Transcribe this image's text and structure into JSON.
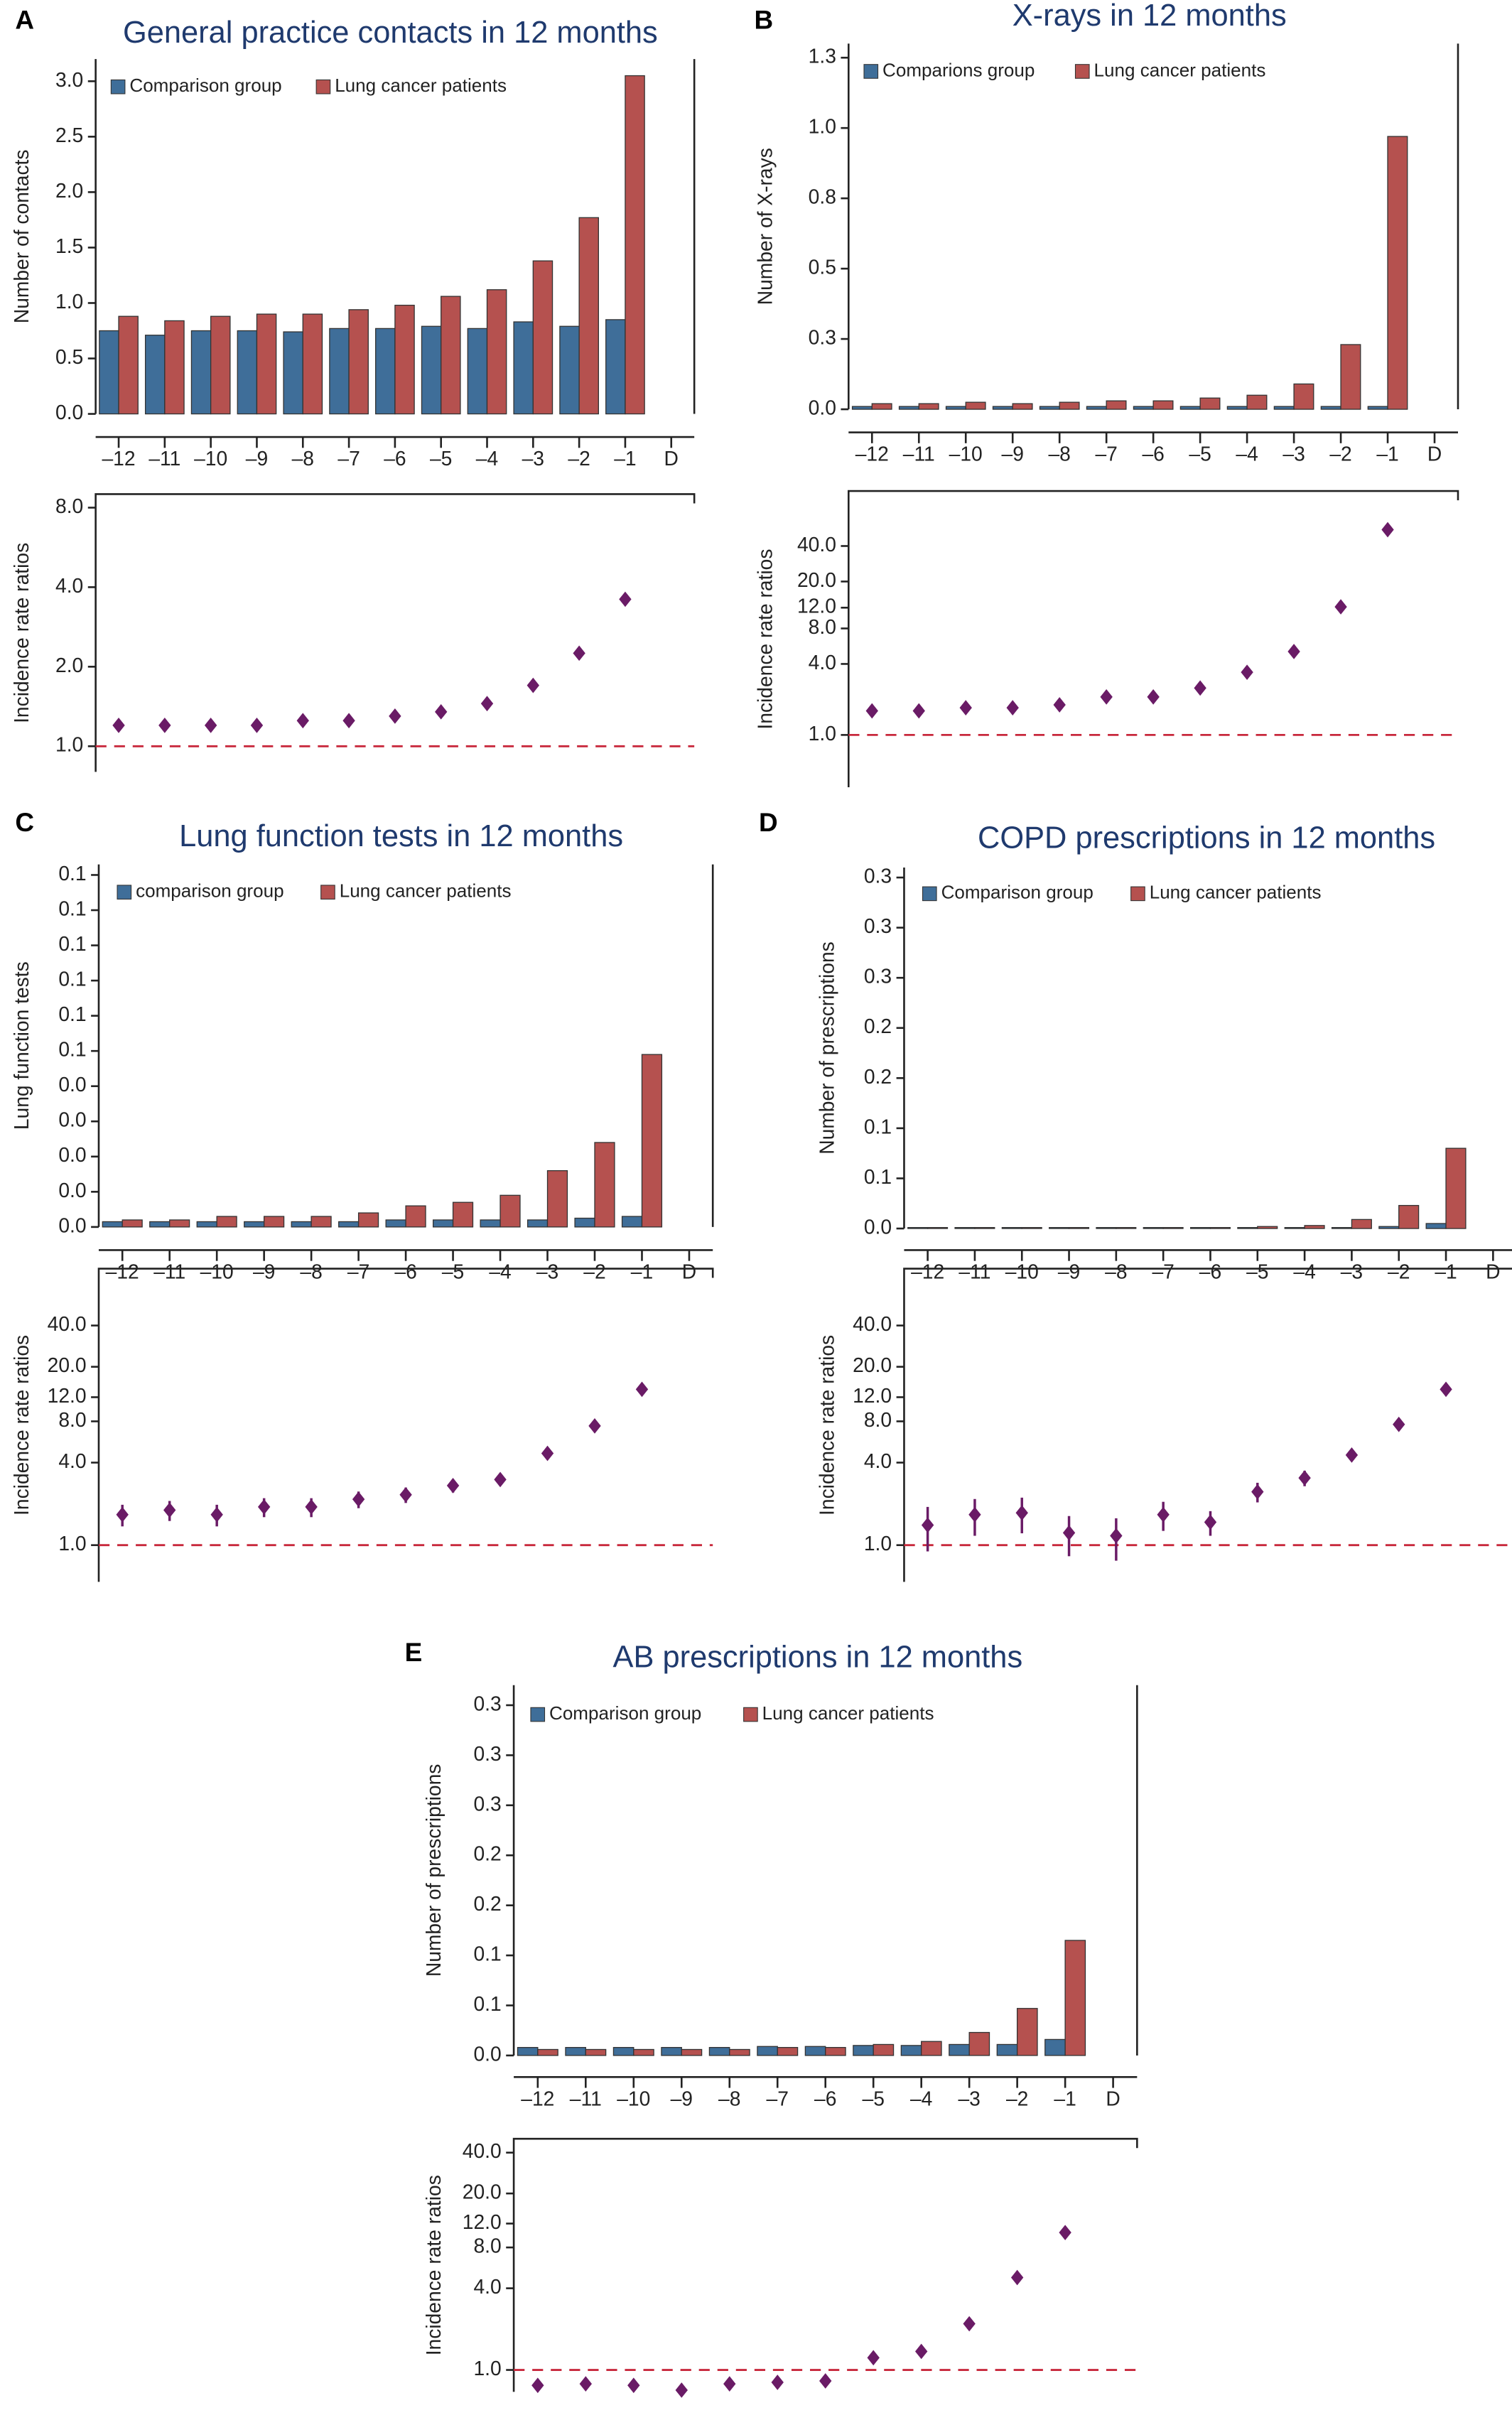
{
  "chart_data": [
    {
      "type": "bar",
      "panel": "A",
      "title": "General practice contacts in 12 months",
      "ylabel": "Number of contacts",
      "categories": [
        "–12",
        "–11",
        "–10",
        "–9",
        "–8",
        "–7",
        "–6",
        "–5",
        "–4",
        "–3",
        "–2",
        "–1",
        "D"
      ],
      "series": [
        {
          "name": "Comparison group",
          "color": "#3f6e99",
          "values": [
            0.75,
            0.71,
            0.75,
            0.75,
            0.74,
            0.77,
            0.77,
            0.79,
            0.77,
            0.83,
            0.79,
            0.85,
            null
          ]
        },
        {
          "name": "Lung cancer patients",
          "color": "#b5514f",
          "values": [
            0.88,
            0.84,
            0.88,
            0.9,
            0.9,
            0.94,
            0.98,
            1.06,
            1.12,
            1.38,
            1.77,
            3.05,
            null
          ]
        }
      ],
      "ylim": [
        0,
        3.2
      ],
      "yticks": [
        {
          "value": 0,
          "label": "0.0"
        },
        0.5,
        {
          "value": 1,
          "label": "1.0"
        },
        1.5,
        {
          "value": 2,
          "label": "2.0"
        },
        2.5,
        {
          "value": 3,
          "label": "3.0"
        }
      ]
    },
    {
      "type": "scatter",
      "ylabel": "Incidence rate ratios",
      "log_scale": true,
      "reference_line": 1,
      "color": "#6a1b66",
      "values": [
        1.2,
        1.2,
        1.2,
        1.2,
        1.25,
        1.25,
        1.3,
        1.35,
        1.45,
        1.7,
        2.25,
        3.6
      ],
      "ylim": [
        0.8,
        9
      ],
      "yticks": [
        {
          "value": 1,
          "label": "1.0"
        },
        {
          "value": 2,
          "label": "2.0"
        },
        {
          "value": 4,
          "label": "4.0"
        },
        {
          "value": 8,
          "label": "8.0"
        }
      ]
    },
    {
      "type": "bar",
      "panel": "B",
      "title": "X-rays in 12 months",
      "ylabel": "Number of X-rays",
      "categories": [
        "–12",
        "–11",
        "–10",
        "–9",
        "–8",
        "–7",
        "–6",
        "–5",
        "–4",
        "–3",
        "–2",
        "–1",
        "D"
      ],
      "series": [
        {
          "name": "Comparions group",
          "color": "#3f6e99",
          "values": [
            0.01,
            0.01,
            0.01,
            0.01,
            0.01,
            0.01,
            0.01,
            0.01,
            0.01,
            0.01,
            0.01,
            0.01,
            null
          ]
        },
        {
          "name": "Lung cancer patients",
          "color": "#b5514f",
          "values": [
            0.02,
            0.02,
            0.025,
            0.02,
            0.025,
            0.03,
            0.03,
            0.04,
            0.05,
            0.09,
            0.23,
            0.97,
            null
          ]
        }
      ],
      "ylim": [
        0,
        1.3
      ],
      "yticks": [
        {
          "value": 0,
          "label": "0.0"
        },
        {
          "value": 0.25,
          "label": "0.3"
        },
        0.5,
        {
          "value": 0.75,
          "label": "0.8"
        },
        {
          "value": 1,
          "label": "1.0"
        },
        {
          "value": 1.25,
          "label": "1.3"
        }
      ]
    },
    {
      "type": "scatter",
      "ylabel": "Incidence rate ratios",
      "log_scale": true,
      "reference_line": 1,
      "color": "#6a1b66",
      "values": [
        1.6,
        1.6,
        1.7,
        1.7,
        1.8,
        2.1,
        2.1,
        2.5,
        3.4,
        5.1,
        12.2,
        55
      ],
      "ylim": [
        0.36,
        117
      ],
      "yticks": [
        {
          "value": 1,
          "label": "1.0"
        },
        {
          "value": 4,
          "label": "4.0"
        },
        {
          "value": 8,
          "label": "8.0"
        },
        {
          "value": 12,
          "label": "12.0"
        },
        {
          "value": 20,
          "label": "20.0"
        },
        {
          "value": 40,
          "label": "40.0"
        }
      ]
    },
    {
      "type": "bar",
      "panel": "C",
      "title": "Lung function tests in 12 months",
      "ylabel": "Lung function tests",
      "categories": [
        "–12",
        "–11",
        "–10",
        "–9",
        "–8",
        "–7",
        "–6",
        "–5",
        "–4",
        "–3",
        "–2",
        "–1",
        "D"
      ],
      "series": [
        {
          "name": "comparison group",
          "color": "#3f6e99",
          "values": [
            0.0015,
            0.0015,
            0.0015,
            0.0015,
            0.0015,
            0.0015,
            0.002,
            0.002,
            0.002,
            0.002,
            0.0025,
            0.003,
            null
          ]
        },
        {
          "name": "Lung cancer patients",
          "color": "#b5514f",
          "values": [
            0.002,
            0.002,
            0.003,
            0.003,
            0.003,
            0.004,
            0.006,
            0.007,
            0.009,
            0.016,
            0.024,
            0.049,
            null
          ]
        }
      ],
      "ylim": [
        0,
        0.103
      ],
      "yticks": [
        {
          "value": 0,
          "label": "0.0"
        },
        {
          "value": 0.01,
          "label": "0.0"
        },
        {
          "value": 0.02,
          "label": "0.0"
        },
        {
          "value": 0.03,
          "label": "0.0"
        },
        {
          "value": 0.04,
          "label": "0.0"
        },
        {
          "value": 0.05,
          "label": "0.1"
        },
        {
          "value": 0.06,
          "label": "0.1"
        },
        {
          "value": 0.07,
          "label": "0.1"
        },
        {
          "value": 0.08,
          "label": "0.1"
        },
        {
          "value": 0.09,
          "label": "0.1"
        },
        0.1
      ]
    },
    {
      "type": "scatter",
      "ylabel": "Incidence rate ratios",
      "log_scale": true,
      "reference_line": 1,
      "color": "#6a1b66",
      "values": [
        1.67,
        1.8,
        1.67,
        1.9,
        1.9,
        2.16,
        2.33,
        2.72,
        3.01,
        4.67,
        7.41,
        13.7
      ],
      "errors": [
        0.3,
        0.3,
        0.3,
        0.3,
        0.3,
        0.3,
        0.3,
        0.3,
        0.3,
        0.4,
        0.6,
        0.8
      ],
      "ylim": [
        0.54,
        104
      ],
      "yticks": [
        {
          "value": 1,
          "label": "1.0"
        },
        {
          "value": 4,
          "label": "4.0"
        },
        {
          "value": 8,
          "label": "8.0"
        },
        {
          "value": 12,
          "label": "12.0"
        },
        {
          "value": 20,
          "label": "20.0"
        },
        {
          "value": 40,
          "label": "40.0"
        }
      ]
    },
    {
      "type": "bar",
      "panel": "D",
      "title": "COPD prescriptions in 12 months",
      "ylabel": "Number of prescriptions",
      "categories": [
        "–12",
        "–11",
        "–10",
        "–9",
        "–8",
        "–7",
        "–6",
        "–5",
        "–4",
        "–3",
        "–2",
        "–1",
        "D"
      ],
      "series": [
        {
          "name": "Comparison group",
          "color": "#3f6e99",
          "values": [
            0.001,
            0.001,
            0.001,
            0.001,
            0.001,
            0.001,
            0.001,
            0.001,
            0.001,
            0.001,
            0.002,
            0.005,
            null
          ]
        },
        {
          "name": "Lung cancer patients",
          "color": "#b5514f",
          "values": [
            0.001,
            0.001,
            0.001,
            0.001,
            0.001,
            0.001,
            0.001,
            0.002,
            0.003,
            0.009,
            0.023,
            0.08,
            null
          ]
        }
      ],
      "ylim": [
        0,
        0.36
      ],
      "yticks": [
        {
          "value": 0,
          "label": "0.0"
        },
        {
          "value": 0.05,
          "label": "0.1"
        },
        0.1,
        {
          "value": 0.15,
          "label": "0.2"
        },
        0.2,
        {
          "value": 0.25,
          "label": "0.3"
        },
        0.3,
        {
          "value": 0.35,
          "label": "0.3"
        }
      ]
    },
    {
      "type": "scatter",
      "ylabel": "Incidence rate ratios",
      "log_scale": true,
      "reference_line": 1,
      "color": "#6a1b66",
      "values": [
        1.4,
        1.67,
        1.72,
        1.23,
        1.17,
        1.67,
        1.47,
        2.45,
        3.09,
        4.54,
        7.6,
        13.7
      ],
      "errors": [
        0.5,
        0.5,
        0.5,
        0.4,
        0.4,
        0.4,
        0.3,
        0.4,
        0.4,
        0.4,
        0.5,
        0.8
      ],
      "ylim": [
        0.54,
        104
      ],
      "yticks": [
        {
          "value": 1,
          "label": "1.0"
        },
        {
          "value": 4,
          "label": "4.0"
        },
        {
          "value": 8,
          "label": "8.0"
        },
        {
          "value": 12,
          "label": "12.0"
        },
        {
          "value": 20,
          "label": "20.0"
        },
        {
          "value": 40,
          "label": "40.0"
        }
      ]
    },
    {
      "type": "bar",
      "panel": "E",
      "title": "AB prescriptions in 12 months",
      "ylabel": "Number of prescriptions",
      "categories": [
        "–12",
        "–11",
        "–10",
        "–9",
        "–8",
        "–7",
        "–6",
        "–5",
        "–4",
        "–3",
        "–2",
        "–1",
        "D"
      ],
      "series": [
        {
          "name": "Comparison group",
          "color": "#3f6e99",
          "values": [
            0.008,
            0.008,
            0.008,
            0.008,
            0.008,
            0.009,
            0.009,
            0.01,
            0.01,
            0.011,
            0.011,
            0.016,
            null
          ]
        },
        {
          "name": "Lung cancer patients",
          "color": "#b5514f",
          "values": [
            0.006,
            0.006,
            0.006,
            0.006,
            0.006,
            0.008,
            0.008,
            0.011,
            0.014,
            0.023,
            0.047,
            0.115,
            null
          ]
        }
      ],
      "ylim": [
        0,
        0.37
      ],
      "yticks": [
        {
          "value": 0,
          "label": "0.0"
        },
        {
          "value": 0.05,
          "label": "0.1"
        },
        0.1,
        {
          "value": 0.15,
          "label": "0.2"
        },
        0.2,
        {
          "value": 0.25,
          "label": "0.3"
        },
        0.3,
        {
          "value": 0.35,
          "label": "0.3"
        }
      ]
    },
    {
      "type": "scatter",
      "ylabel": "Incidence rate ratios",
      "log_scale": true,
      "reference_line": 1,
      "color": "#6a1b66",
      "values": [
        0.77,
        0.79,
        0.77,
        0.71,
        0.79,
        0.81,
        0.83,
        1.23,
        1.37,
        2.19,
        4.8,
        10.3
      ],
      "ylim": [
        0.69,
        50.6
      ],
      "yticks": [
        {
          "value": 1,
          "label": "1.0"
        },
        {
          "value": 4,
          "label": "4.0"
        },
        {
          "value": 8,
          "label": "8.0"
        },
        {
          "value": 12,
          "label": "12.0"
        },
        {
          "value": 20,
          "label": "20.0"
        },
        {
          "value": 40,
          "label": "40.0"
        }
      ]
    }
  ]
}
